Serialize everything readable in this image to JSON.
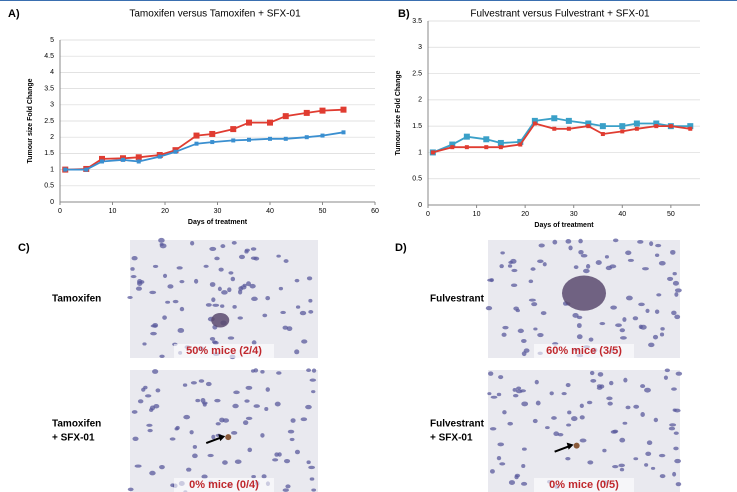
{
  "chart_data": [
    {
      "type": "line",
      "panel": "A)",
      "title": "Tamoxifen versus Tamoxifen + SFX-01",
      "x_label": "Days of treatment",
      "y_label": "Tumour size Fold Change",
      "x": [
        1,
        5,
        8,
        12,
        15,
        19,
        22,
        26,
        29,
        33,
        36,
        40,
        43,
        47,
        50,
        54
      ],
      "series": [
        {
          "color": "#e03c31",
          "values": [
            1,
            1.02,
            1.33,
            1.35,
            1.38,
            1.45,
            1.6,
            2.05,
            2.1,
            2.25,
            2.45,
            2.45,
            2.65,
            2.75,
            2.82,
            2.85
          ]
        },
        {
          "color": "#3a8fd0",
          "values": [
            1,
            1.0,
            1.25,
            1.3,
            1.25,
            1.4,
            1.55,
            1.8,
            1.85,
            1.9,
            1.92,
            1.95,
            1.95,
            2.0,
            2.05,
            2.15
          ]
        }
      ],
      "xlim": [
        0,
        60
      ],
      "xticks": [
        0,
        10,
        20,
        30,
        40,
        50,
        60
      ],
      "ylim": [
        0,
        5
      ],
      "yticks": [
        0,
        0.5,
        1,
        1.5,
        2,
        2.5,
        3,
        3.5,
        4,
        4.5,
        5
      ],
      "grid": true
    },
    {
      "type": "line",
      "panel": "B)",
      "title": "Fulvestrant versus Fulvestrant + SFX-01",
      "x_label": "Days of treatment",
      "y_label": "Tumour size Fold Change",
      "x": [
        1,
        5,
        8,
        12,
        15,
        19,
        22,
        26,
        29,
        33,
        36,
        40,
        43,
        47,
        50,
        54
      ],
      "series": [
        {
          "color": "#3aa0c8",
          "values": [
            1,
            1.15,
            1.3,
            1.25,
            1.18,
            1.2,
            1.6,
            1.65,
            1.6,
            1.55,
            1.5,
            1.5,
            1.55,
            1.55,
            1.5,
            1.5
          ]
        },
        {
          "color": "#e03c31",
          "values": [
            1,
            1.1,
            1.1,
            1.1,
            1.1,
            1.15,
            1.55,
            1.45,
            1.45,
            1.5,
            1.35,
            1.4,
            1.45,
            1.5,
            1.5,
            1.45
          ]
        }
      ],
      "xlim": [
        0,
        56
      ],
      "xticks": [
        0,
        10,
        20,
        30,
        40,
        50
      ],
      "ylim": [
        0,
        3.5
      ],
      "yticks": [
        0,
        0.5,
        1,
        1.5,
        2,
        2.5,
        3,
        3.5
      ],
      "grid": true
    }
  ],
  "panels": [
    {
      "letter": "C)",
      "rows": [
        {
          "label": [
            "Tamoxifen"
          ],
          "caption": "50% mice (2/4)"
        },
        {
          "label": [
            "Tamoxifen",
            "+ SFX-01"
          ],
          "caption": "0% mice (0/4)"
        }
      ]
    },
    {
      "letter": "D)",
      "rows": [
        {
          "label": [
            "Fulvestrant"
          ],
          "caption": "60% mice (3/5)"
        },
        {
          "label": [
            "Fulvestrant",
            "+ SFX-01"
          ],
          "caption": "0% mice (0/5)"
        }
      ]
    }
  ]
}
